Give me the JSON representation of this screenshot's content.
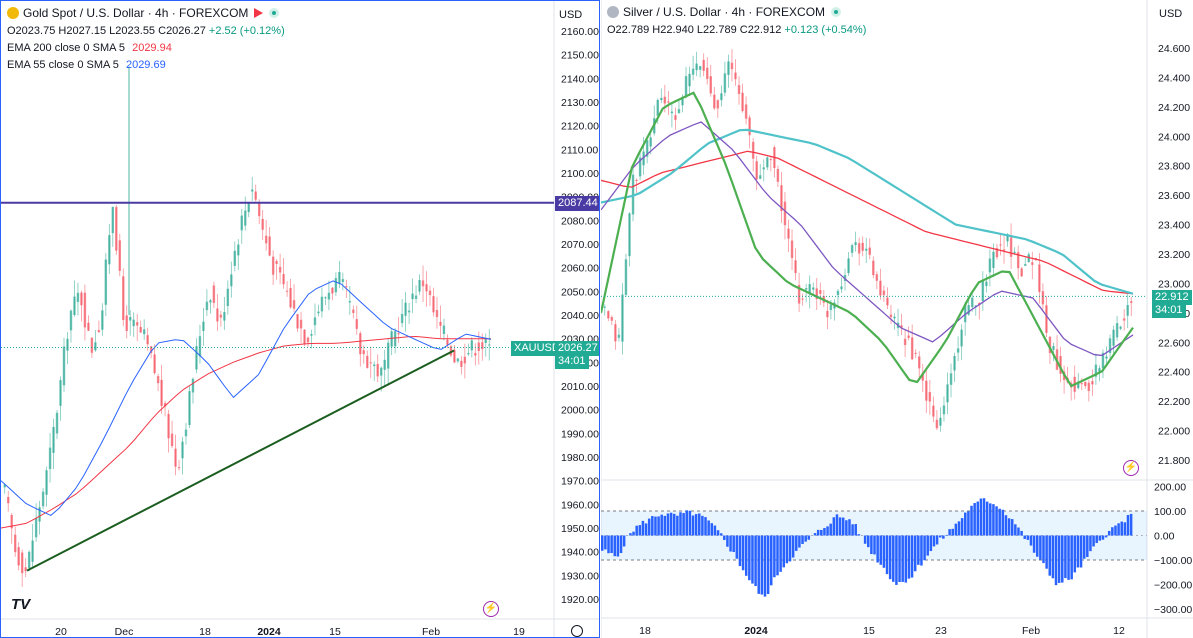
{
  "left": {
    "title": "Gold Spot / U.S. Dollar · 4h · FOREXCOM",
    "ohlc": {
      "o": "O2023.75",
      "h": "H2027.15",
      "l": "L2023.55",
      "c": "C2026.27",
      "chg": "+2.52 (+0.12%)"
    },
    "indicators": [
      {
        "label": "EMA 200 close 0 SMA 5",
        "value": "2029.94",
        "color": "#f23645"
      },
      {
        "label": "EMA 55 close 0 SMA 5",
        "value": "2029.69",
        "color": "#2962ff"
      }
    ],
    "currency": "USD",
    "hline_label": "2087.44",
    "symbol_tag": "XAUUSD",
    "price_tag": "2026.27",
    "countdown": "34:01",
    "y_ticks": [
      "2160.00",
      "2150.00",
      "2140.00",
      "2130.00",
      "2120.00",
      "2110.00",
      "2100.00",
      "2090.00",
      "2080.00",
      "2070.00",
      "2060.00",
      "2050.00",
      "2040.00",
      "2030.00",
      "2020.00",
      "2010.00",
      "2000.00",
      "1990.00",
      "1980.00",
      "1970.00",
      "1960.00",
      "1950.00",
      "1940.00",
      "1930.00",
      "1920.00"
    ],
    "x_ticks": [
      "20",
      "Dec",
      "18",
      "2024",
      "15",
      "Feb",
      "19"
    ],
    "logo": "TV"
  },
  "right": {
    "title": "Silver / U.S. Dollar · 4h · FOREXCOM",
    "ohlc": {
      "o": "O22.789",
      "h": "H22.940",
      "l": "L22.789",
      "c": "C22.912",
      "chg": "+0.123 (+0.54%)"
    },
    "currency": "USD",
    "price_tag": "22.912",
    "countdown": "34:01",
    "y_ticks": [
      "24.600",
      "24.400",
      "24.200",
      "24.000",
      "23.800",
      "23.600",
      "23.400",
      "23.200",
      "23.000",
      "22.800",
      "22.600",
      "22.400",
      "22.200",
      "22.000",
      "21.800"
    ],
    "osc_ticks": [
      "200.00",
      "100.00",
      "0.00",
      "−100.00",
      "−200.00",
      "−300.00"
    ],
    "x_ticks": [
      "18",
      "2024",
      "15",
      "23",
      "Feb",
      "12"
    ]
  },
  "chart_data": [
    {
      "type": "candlestick",
      "title": "Gold Spot / U.S. Dollar · 4h · FOREXCOM",
      "ylim": [
        1915,
        2165
      ],
      "x_ticks": [
        "20",
        "Dec",
        "18",
        "2024",
        "15",
        "Feb",
        "19"
      ],
      "horizontal_line": 2087.44,
      "trendline": {
        "from": 1932,
        "to": 2025
      },
      "close_path": [
        1965,
        1940,
        1932,
        1955,
        1975,
        2005,
        2040,
        2050,
        2025,
        2040,
        2090,
        2038,
        2035,
        2030,
        2015,
        1995,
        1975,
        2000,
        2030,
        2052,
        2035,
        2060,
        2080,
        2095,
        2075,
        2060,
        2052,
        2040,
        2030,
        2042,
        2050,
        2055,
        2045,
        2025,
        2020,
        2015,
        2030,
        2040,
        2050,
        2055,
        2038,
        2030,
        2020,
        2025,
        2028,
        2026
      ],
      "series": [
        {
          "name": "EMA 200 close 0 SMA 5",
          "color": "#f23645",
          "values": [
            1950,
            1952,
            1958,
            1965,
            1975,
            1985,
            1998,
            2008,
            2015,
            2020,
            2024,
            2027,
            2028,
            2028,
            2029,
            2030,
            2031,
            2030,
            2030,
            2029.94
          ]
        },
        {
          "name": "EMA 55 close 0 SMA 5",
          "color": "#2962ff",
          "values": [
            1970,
            1960,
            1955,
            1968,
            1988,
            2010,
            2028,
            2030,
            2020,
            2005,
            2015,
            2035,
            2050,
            2055,
            2045,
            2035,
            2030,
            2025,
            2032,
            2029.69
          ]
        }
      ],
      "last_price": 2026.27
    },
    {
      "type": "candlestick",
      "title": "Silver / U.S. Dollar · 4h · FOREXCOM",
      "ylim": [
        21.7,
        24.75
      ],
      "x_ticks": [
        "18",
        "2024",
        "15",
        "23",
        "Feb",
        "12"
      ],
      "close_path": [
        22.8,
        22.6,
        23.7,
        23.9,
        24.3,
        24.1,
        24.4,
        24.5,
        24.2,
        24.5,
        24.2,
        23.7,
        23.9,
        23.4,
        22.9,
        23.0,
        22.8,
        23.0,
        23.3,
        23.2,
        22.9,
        22.7,
        22.6,
        22.3,
        22.0,
        22.4,
        22.8,
        22.9,
        23.2,
        23.3,
        23.1,
        23.2,
        22.6,
        22.4,
        22.3,
        22.3,
        22.5,
        22.7,
        22.912
      ],
      "series": [
        {
          "color": "#f23645",
          "values": [
            23.7,
            23.65,
            23.75,
            23.8,
            23.85,
            23.9,
            23.85,
            23.75,
            23.65,
            23.55,
            23.45,
            23.35,
            23.3,
            23.25,
            23.2,
            23.15,
            23.05,
            22.95,
            22.93
          ]
        },
        {
          "color": "#4fc3c9",
          "values": [
            23.55,
            23.6,
            23.75,
            23.95,
            24.05,
            24.0,
            23.95,
            23.85,
            23.7,
            23.55,
            23.4,
            23.35,
            23.3,
            23.2,
            23.0,
            22.93
          ]
        },
        {
          "color": "#7e57c2",
          "values": [
            23.5,
            23.8,
            24.0,
            24.1,
            23.9,
            23.6,
            23.4,
            23.1,
            22.9,
            22.7,
            22.6,
            22.8,
            22.95,
            22.9,
            22.6,
            22.5,
            22.65
          ]
        },
        {
          "color": "#4caf50",
          "values": [
            22.8,
            23.8,
            24.2,
            24.3,
            23.8,
            23.2,
            23.0,
            22.9,
            22.8,
            22.6,
            22.3,
            22.6,
            23.0,
            23.1,
            22.7,
            22.3,
            22.4,
            22.7
          ]
        }
      ],
      "oscillator": {
        "ylim": [
          -320,
          210
        ],
        "levels": [
          100,
          -100
        ],
        "values": [
          -60,
          -90,
          20,
          60,
          90,
          80,
          95,
          70,
          10,
          -80,
          -180,
          -260,
          -150,
          -80,
          -20,
          30,
          80,
          60,
          -40,
          -120,
          -200,
          -170,
          -90,
          -20,
          40,
          110,
          150,
          120,
          60,
          -30,
          -120,
          -200,
          -170,
          -90,
          -10,
          40,
          80
        ]
      },
      "last_price": 22.912
    }
  ]
}
